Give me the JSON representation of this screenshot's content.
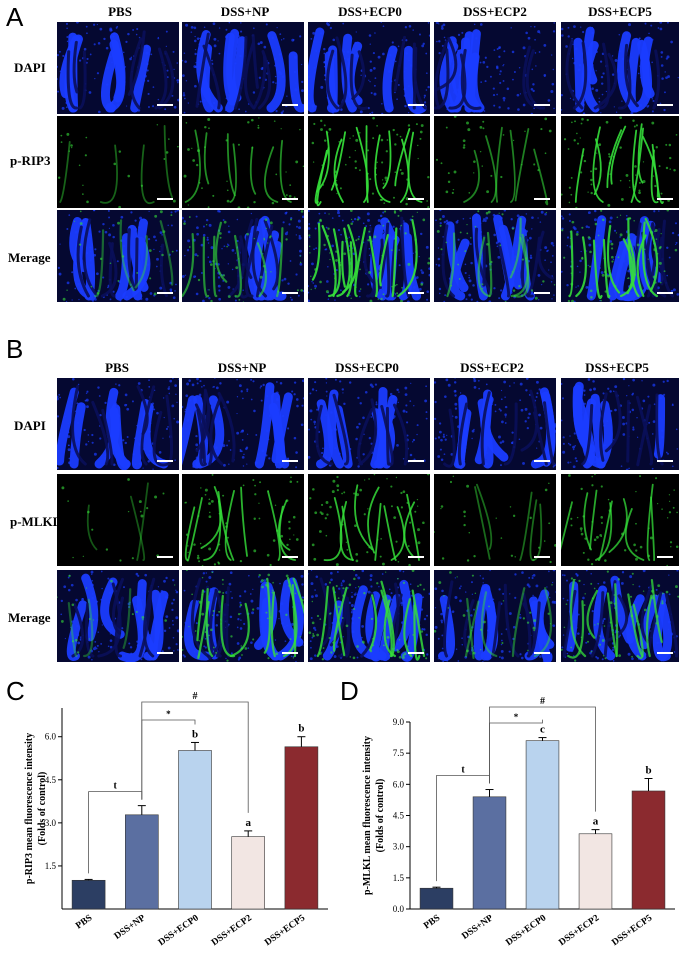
{
  "panels": {
    "A": "A",
    "B": "B",
    "C": "C",
    "D": "D"
  },
  "groups": [
    "PBS",
    "DSS+NP",
    "DSS+ECP0",
    "DSS+ECP2",
    "DSS+ECP5"
  ],
  "rowsA": [
    "DAPI",
    "p-RIP3",
    "Merage"
  ],
  "rowsB": [
    "DAPI",
    "p-MLKL",
    "Merage"
  ],
  "colors": {
    "dapi": "#1a3cff",
    "green": "#35e03a",
    "background": "#000000"
  },
  "chart_data": [
    {
      "type": "bar",
      "panel": "C",
      "ylabel": "p-RIP3 mean fluorescence intensity\n(Folds of control)",
      "categories": [
        "PBS",
        "DSS+NP",
        "DSS+ECP0",
        "DSS+ECP2",
        "DSS+ECP5"
      ],
      "values": [
        1.0,
        3.28,
        5.52,
        2.52,
        5.65
      ],
      "errors": [
        0.03,
        0.32,
        0.28,
        0.2,
        0.35
      ],
      "bar_colors": [
        "#2c3e63",
        "#5b6fa1",
        "#b9d3ee",
        "#f2e6e3",
        "#8b2a2f"
      ],
      "letters": [
        "",
        "",
        "b",
        "a",
        "b"
      ],
      "ylim": [
        0,
        7
      ],
      "yticks": [
        "1.5",
        "3.0",
        "4.5",
        "6.0"
      ],
      "brackets": [
        {
          "from": 0,
          "to": 1,
          "label": "t"
        },
        {
          "from": 1,
          "to": 2,
          "label": "*"
        },
        {
          "from": 1,
          "to": 3,
          "label": "#"
        }
      ]
    },
    {
      "type": "bar",
      "panel": "D",
      "ylabel": "p-MLKL mean fluorescence intensity\n(Folds of control)",
      "categories": [
        "PBS",
        "DSS+NP",
        "DSS+ECP0",
        "DSS+ECP2",
        "DSS+ECP5"
      ],
      "values": [
        1.0,
        5.4,
        8.1,
        3.62,
        5.68
      ],
      "errors": [
        0.05,
        0.35,
        0.15,
        0.2,
        0.6
      ],
      "bar_colors": [
        "#2c3e63",
        "#5b6fa1",
        "#b9d3ee",
        "#f2e6e3",
        "#8b2a2f"
      ],
      "letters": [
        "",
        "",
        "c",
        "a",
        "b"
      ],
      "ylim": [
        0,
        9
      ],
      "yticks": [
        "0.0",
        "1.5",
        "3.0",
        "4.5",
        "6.0",
        "7.5",
        "9.0"
      ],
      "brackets": [
        {
          "from": 0,
          "to": 1,
          "label": "t"
        },
        {
          "from": 1,
          "to": 2,
          "label": "*"
        },
        {
          "from": 1,
          "to": 3,
          "label": "#"
        }
      ]
    }
  ]
}
